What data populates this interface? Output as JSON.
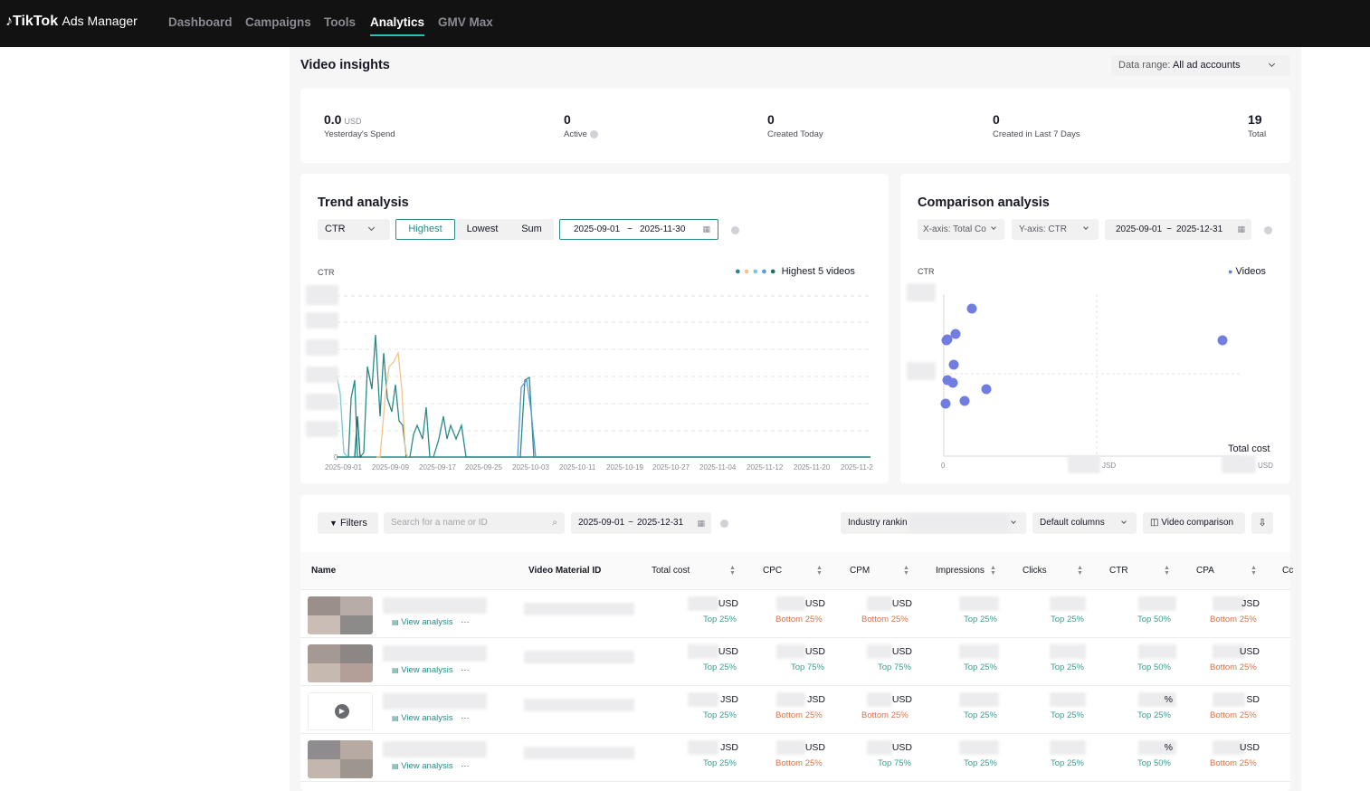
{
  "header": {
    "logo": "TikTok",
    "logo_sub": "Ads Manager",
    "nav": [
      {
        "label": "Dashboard",
        "active": false
      },
      {
        "label": "Campaigns",
        "active": false
      },
      {
        "label": "Tools",
        "active": false
      },
      {
        "label": "Analytics",
        "active": true
      },
      {
        "label": "GMV Max",
        "active": false
      }
    ]
  },
  "page": {
    "title": "Video insights",
    "data_range_label": "Data range:",
    "data_range_value": "All ad accounts"
  },
  "stats": [
    {
      "value": "0.0",
      "unit": "USD",
      "label": "Yesterday's Spend"
    },
    {
      "value": "0",
      "unit": "",
      "label": "Active"
    },
    {
      "value": "0",
      "unit": "",
      "label": "Created Today"
    },
    {
      "value": "0",
      "unit": "",
      "label": "Created in Last 7 Days"
    },
    {
      "value": "19",
      "unit": "",
      "label": "Total"
    }
  ],
  "trend": {
    "title": "Trend analysis",
    "metric": "CTR",
    "modes": [
      "Highest",
      "Lowest",
      "Sum"
    ],
    "active_mode": "Highest",
    "date_start": "2025-09-01",
    "date_sep": "~",
    "date_end": "2025-11-30",
    "y_label": "CTR",
    "legend": "Highest 5 videos",
    "x_ticks": [
      "2025-09-01",
      "2025-09-09",
      "2025-09-17",
      "2025-09-25",
      "2025-10-03",
      "2025-10-11",
      "2025-10-19",
      "2025-10-27",
      "2025-11-04",
      "2025-11-12",
      "2025-11-20",
      "2025-11-2"
    ],
    "zero_tick": "0",
    "series_colors": [
      "#2a8a85",
      "#f2c38b",
      "#7ec8d3",
      "#5a9ed6",
      "#1f6f6b"
    ]
  },
  "comparison": {
    "title": "Comparison analysis",
    "x_axis": "X-axis: Total Co",
    "y_axis": "Y-axis: CTR",
    "date_start": "2025-09-01",
    "date_sep": "~",
    "date_end": "2025-12-31",
    "y_label": "CTR",
    "legend": "Videos",
    "x_label": "Total cost",
    "x_unit": "USD",
    "x_tick_unit": "JSD",
    "zero_tick": "0",
    "point_color": "#6b77e0"
  },
  "table_toolbar": {
    "filters": "Filters",
    "search_placeholder": "Search for a name or ID",
    "date_start": "2025-09-01",
    "date_sep": "~",
    "date_end": "2025-12-31",
    "industry": "Industry rankin",
    "columns": "Default columns",
    "compare": "Video comparison"
  },
  "table": {
    "headers": [
      "Name",
      "Video Material ID",
      "Total cost",
      "CPC",
      "CPM",
      "Impressions",
      "Clicks",
      "CTR",
      "CPA",
      "Cc"
    ],
    "view_label": "View analysis",
    "more": "···",
    "rows": [
      {
        "cost": "USD",
        "cost_rank": "Top 25%",
        "cpc": "USD",
        "cpc_rank": "Bottom 25%",
        "cpm": "USD",
        "cpm_rank": "Bottom 25%",
        "imp_rank": "Top 25%",
        "clk_rank": "Top 25%",
        "ctr": "",
        "ctr_rank": "Top 50%",
        "cpa": "JSD",
        "cpa_rank": "Bottom 25%"
      },
      {
        "cost": "USD",
        "cost_rank": "Top 25%",
        "cpc": "USD",
        "cpc_rank": "Top 75%",
        "cpm": "USD",
        "cpm_rank": "Top 75%",
        "imp_rank": "Top 25%",
        "clk_rank": "Top 25%",
        "ctr": "",
        "ctr_rank": "Top 50%",
        "cpa": "USD",
        "cpa_rank": "Bottom 25%"
      },
      {
        "cost": "JSD",
        "cost_rank": "Top 25%",
        "cpc": "JSD",
        "cpc_rank": "Bottom 25%",
        "cpm": "USD",
        "cpm_rank": "Bottom 25%",
        "imp_rank": "Top 25%",
        "clk_rank": "Top 25%",
        "ctr": "%",
        "ctr_rank": "Top 25%",
        "cpa": "SD",
        "cpa_rank": "Bottom 25%"
      },
      {
        "cost": "JSD",
        "cost_rank": "Top 25%",
        "cpc": "USD",
        "cpc_rank": "Bottom 25%",
        "cpm": "USD",
        "cpm_rank": "Top 75%",
        "imp_rank": "Top 25%",
        "clk_rank": "Top 25%",
        "ctr": "%",
        "ctr_rank": "Top 50%",
        "cpa": "USD",
        "cpa_rank": "Bottom 25%"
      }
    ]
  }
}
